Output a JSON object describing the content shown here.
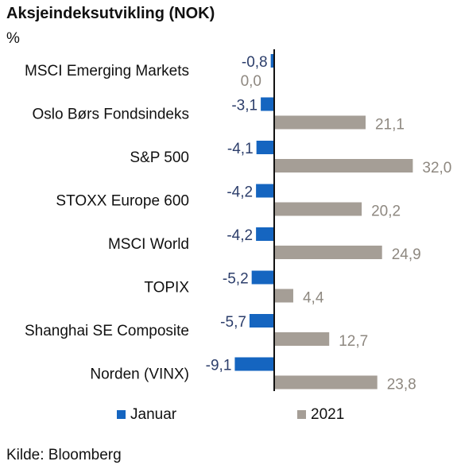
{
  "chart_data": {
    "type": "bar",
    "orientation": "horizontal",
    "title": "Aksjeindeksutvikling (NOK)",
    "unit": "%",
    "categories": [
      "MSCI Emerging Markets",
      "Oslo Børs Fondsindeks",
      "S&P 500",
      "STOXX Europe 600",
      "MSCI World",
      "TOPIX",
      "Shanghai SE Composite",
      "Norden (VINX)"
    ],
    "series": [
      {
        "name": "Januar",
        "color": "#1565c0",
        "label_color": "#2c3e6b",
        "values": [
          -0.8,
          -3.1,
          -4.1,
          -4.2,
          -4.2,
          -5.2,
          -5.7,
          -9.1
        ],
        "value_labels": [
          "-0,8",
          "-3,1",
          "-4,1",
          "-4,2",
          "-4,2",
          "-5,2",
          "-5,7",
          "-9,1"
        ]
      },
      {
        "name": "2021",
        "color": "#a59e96",
        "label_color": "#8e8880",
        "values": [
          0.0,
          21.1,
          32.0,
          20.2,
          24.9,
          4.4,
          12.7,
          23.8
        ],
        "value_labels": [
          "0,0",
          "21,1",
          "32,0",
          "20,2",
          "24,9",
          "4,4",
          "12,7",
          "23,8"
        ]
      }
    ],
    "legend_position": "bottom",
    "grid": false
  },
  "source": "Kilde: Bloomberg"
}
